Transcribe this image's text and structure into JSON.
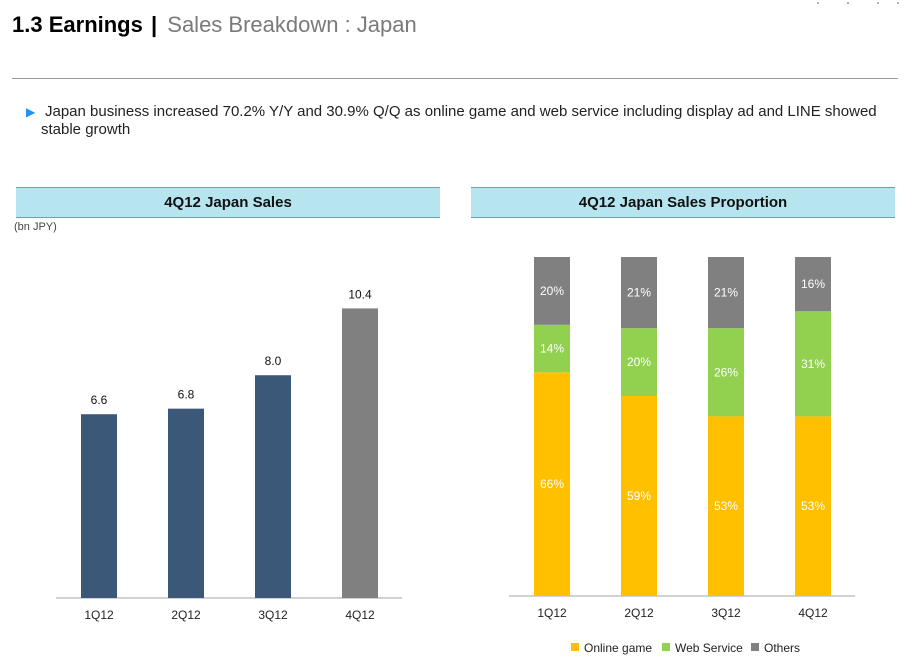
{
  "header": {
    "number": "1.3",
    "title": "Earnings",
    "separator": "|",
    "subtitle": "Sales Breakdown : Japan"
  },
  "bullet": {
    "arrow_icon": "triangle-right-icon",
    "text": "Japan business increased 70.2% Y/Y and 30.9% Q/Q as online game and web service including display ad and LINE showed stable growth"
  },
  "colors": {
    "header_fill": "#b6e5ef",
    "bar_navy": "#3b5878",
    "bar_gray": "#808080",
    "online_game": "#ffc000",
    "web_service": "#92d050",
    "others": "#808080",
    "bullet_arrow": "#1e90ff"
  },
  "chart_data": [
    {
      "type": "bar",
      "title": "4Q12 Japan Sales",
      "unit": "(bn JPY)",
      "categories": [
        "1Q12",
        "2Q12",
        "3Q12",
        "4Q12"
      ],
      "values": [
        6.6,
        6.8,
        8.0,
        10.4
      ],
      "value_labels": [
        "6.6",
        "6.8",
        "8.0",
        "10.4"
      ],
      "bar_colors": [
        "#3b5878",
        "#3b5878",
        "#3b5878",
        "#808080"
      ],
      "ylim": [
        0,
        13
      ],
      "grid": false,
      "legend": "none"
    },
    {
      "type": "bar",
      "stacked": true,
      "normalized": true,
      "title": "4Q12 Japan Sales Proportion",
      "categories": [
        "1Q12",
        "2Q12",
        "3Q12",
        "4Q12"
      ],
      "series": [
        {
          "name": "Online game",
          "color": "#ffc000",
          "values": [
            66,
            59,
            53,
            53
          ],
          "labels": [
            "66%",
            "59%",
            "53%",
            "53%"
          ]
        },
        {
          "name": "Web Service",
          "color": "#92d050",
          "values": [
            14,
            20,
            26,
            31
          ],
          "labels": [
            "14%",
            "20%",
            "26%",
            "31%"
          ]
        },
        {
          "name": "Others",
          "color": "#808080",
          "values": [
            20,
            21,
            21,
            16
          ],
          "labels": [
            "20%",
            "21%",
            "21%",
            "16%"
          ]
        }
      ],
      "ylim": [
        0,
        100
      ],
      "grid": false,
      "legend": "bottom-right"
    }
  ]
}
